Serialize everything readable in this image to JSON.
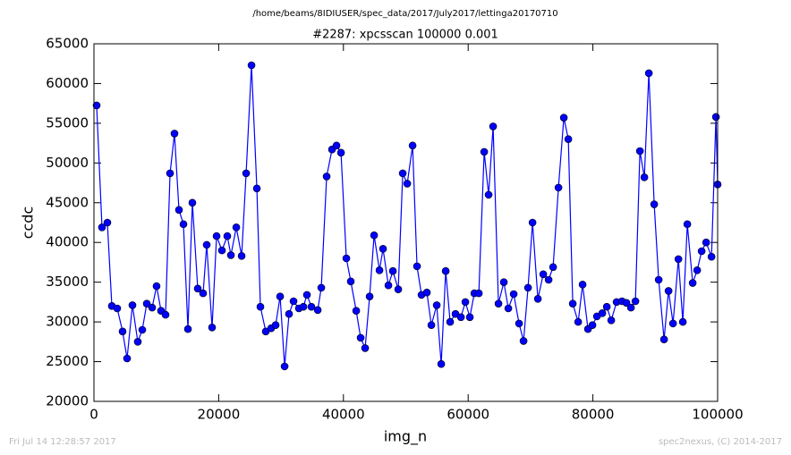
{
  "chart_data": {
    "type": "line",
    "title": "/home/beams/8IDIUSER/spec_data/2017/July2017/lettinga20170710",
    "subtitle": "#2287: xpcsscan 100000 0.001",
    "x_label": "img_n",
    "y_label": "ccdc",
    "xlim": [
      0,
      100000
    ],
    "xticks": [
      0,
      20000,
      40000,
      60000,
      80000,
      100000
    ],
    "ylim": [
      20000,
      65000
    ],
    "yticks": [
      20000,
      25000,
      30000,
      35000,
      40000,
      45000,
      50000,
      55000,
      60000,
      65000
    ],
    "grid": false,
    "series": [
      {
        "name": "ccdc",
        "color": "#0000ff",
        "x": [
          430,
          1290,
          2150,
          2870,
          3730,
          4590,
          5310,
          6170,
          7030,
          7750,
          8470,
          9330,
          10040,
          10760,
          11480,
          12200,
          12910,
          13630,
          14350,
          15070,
          15780,
          16640,
          17500,
          18080,
          18940,
          19660,
          20520,
          21380,
          21960,
          22820,
          23680,
          24400,
          25260,
          26120,
          26690,
          27550,
          28410,
          29130,
          29850,
          30570,
          31280,
          32000,
          32860,
          33580,
          34150,
          34870,
          35880,
          36450,
          37310,
          38170,
          38890,
          39610,
          40470,
          41180,
          42050,
          42760,
          43480,
          44200,
          44920,
          45780,
          46350,
          47210,
          47930,
          48790,
          49510,
          50230,
          51090,
          51800,
          52520,
          53380,
          54100,
          54960,
          55680,
          56400,
          57110,
          57970,
          58840,
          59550,
          60270,
          60990,
          61710,
          62570,
          63280,
          64000,
          64860,
          65720,
          66440,
          67300,
          68160,
          68880,
          69600,
          70320,
          71180,
          72040,
          72900,
          73620,
          74480,
          75340,
          76060,
          76770,
          77640,
          78350,
          79210,
          79930,
          80650,
          81510,
          82230,
          82940,
          83800,
          84670,
          85380,
          86100,
          86820,
          87540,
          88250,
          88970,
          89830,
          90550,
          91410,
          92130,
          92850,
          93710,
          94420,
          95140,
          96000,
          96720,
          97440,
          98160,
          99020,
          99730,
          100000
        ],
        "values": [
          57240,
          41900,
          42500,
          32000,
          31700,
          28800,
          25400,
          32100,
          27500,
          29000,
          32300,
          31800,
          34500,
          31400,
          30900,
          48700,
          53700,
          44100,
          42300,
          29100,
          45000,
          34200,
          33600,
          39700,
          29300,
          40800,
          39000,
          40800,
          38400,
          41900,
          38300,
          48700,
          62300,
          46800,
          31900,
          28800,
          29200,
          29600,
          33200,
          24400,
          31000,
          32600,
          31700,
          31900,
          33400,
          31900,
          31500,
          34300,
          48300,
          51700,
          52200,
          51300,
          38000,
          35100,
          31400,
          28000,
          26700,
          33200,
          40900,
          36500,
          39200,
          34600,
          36400,
          34100,
          48700,
          47400,
          52200,
          37000,
          33400,
          33700,
          29600,
          32100,
          24700,
          36400,
          30000,
          31000,
          30600,
          32500,
          30600,
          33600,
          33600,
          51400,
          46000,
          54600,
          32300,
          35000,
          31700,
          33500,
          29800,
          27600,
          34300,
          42500,
          32900,
          36000,
          35300,
          36900,
          46900,
          55700,
          53000,
          32300,
          30000,
          34700,
          29100,
          29600,
          30700,
          31100,
          31900,
          30200,
          32500,
          32600,
          32400,
          31800,
          32600,
          51500,
          48200,
          61300,
          44800,
          35300,
          27800,
          33900,
          29800,
          37900,
          30000,
          42300,
          34900,
          36500,
          38900,
          40000,
          38200,
          55800,
          47300
        ]
      }
    ]
  },
  "footer": {
    "left": "Fri Jul 14 12:28:57 2017",
    "right": "spec2nexus, (C) 2014-2017"
  }
}
